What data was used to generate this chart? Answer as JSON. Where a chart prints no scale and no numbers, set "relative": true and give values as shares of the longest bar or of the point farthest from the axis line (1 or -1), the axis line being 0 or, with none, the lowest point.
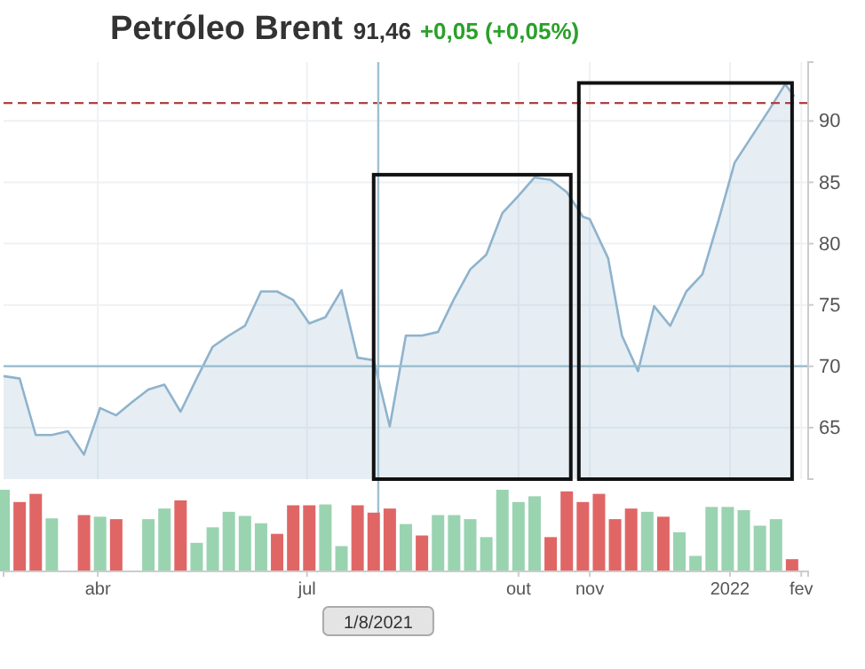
{
  "chart_data": [
    {
      "type": "area",
      "title": "Petróleo Brent",
      "subtitle": "91,46",
      "annotations": [
        "+0,05 (+0,05%)"
      ],
      "x": [
        "2021-02-19",
        "2021-02-26",
        "2021-03-05",
        "2021-03-12",
        "2021-03-19",
        "2021-03-26",
        "2021-04-02",
        "2021-04-09",
        "2021-04-16",
        "2021-04-23",
        "2021-04-30",
        "2021-05-07",
        "2021-05-14",
        "2021-05-21",
        "2021-05-28",
        "2021-06-04",
        "2021-06-11",
        "2021-06-18",
        "2021-06-25",
        "2021-07-02",
        "2021-07-09",
        "2021-07-16",
        "2021-07-23",
        "2021-07-30",
        "2021-08-06",
        "2021-08-13",
        "2021-08-20",
        "2021-08-27",
        "2021-09-03",
        "2021-09-10",
        "2021-09-17",
        "2021-09-24",
        "2021-10-01",
        "2021-10-08",
        "2021-10-15",
        "2021-10-22",
        "2021-10-29",
        "2021-11-01",
        "2021-11-09",
        "2021-11-15",
        "2021-11-22",
        "2021-11-29",
        "2021-12-06",
        "2021-12-13",
        "2021-12-20",
        "2021-12-27",
        "2022-01-03",
        "2022-01-18",
        "2022-01-25",
        "2022-01-29"
      ],
      "series": [
        {
          "color": "#8fb3cc",
          "values": [
            69.2,
            69.0,
            64.4,
            64.4,
            64.7,
            62.8,
            66.6,
            66.0,
            67.1,
            68.1,
            68.5,
            66.3,
            69.0,
            71.6,
            72.5,
            73.3,
            76.1,
            76.1,
            75.4,
            73.5,
            74.0,
            76.2,
            70.7,
            70.5,
            65.1,
            72.5,
            72.5,
            72.8,
            75.5,
            77.9,
            79.1,
            82.5,
            83.9,
            85.4,
            85.2,
            84.2,
            82.2,
            82.0,
            78.8,
            72.5,
            69.6,
            74.9,
            73.3,
            76.1,
            77.5,
            81.9,
            86.6,
            90.9,
            93.0,
            92.0
          ]
        }
      ],
      "xlim": [
        "2021-02-19",
        "2022-02-04"
      ],
      "xticks": [
        {
          "value": "2021-04-01",
          "label": null
        },
        {
          "value": "2021-07-01",
          "label": null
        },
        {
          "value": "2021-10-01",
          "label": null
        },
        {
          "value": "2021-11-01",
          "label": null
        },
        {
          "value": "2022-01-01",
          "label": null
        },
        {
          "value": "2022-02-01",
          "label": null
        }
      ],
      "ylim": [
        60.8,
        94.8
      ],
      "yticks": [
        65,
        70,
        75,
        80,
        85,
        90
      ],
      "grid": true,
      "tick_labels": "y",
      "ref_lines": [
        {
          "axis": "y",
          "value": 91.46,
          "color": "#b04040",
          "line_style": "dashed"
        },
        {
          "axis": "y",
          "value": 70,
          "color": "#9fbfd0"
        },
        {
          "axis": "x",
          "value": "2021-08-01",
          "label": "1/8/2021",
          "color": "#9fbfd0"
        }
      ]
    },
    {
      "type": "bar",
      "relative": true,
      "tick_labels": "x",
      "x": [
        "2021-02-19",
        "2021-02-26",
        "2021-03-05",
        "2021-03-12",
        "2021-03-19",
        "2021-03-26",
        "2021-04-02",
        "2021-04-09",
        "2021-04-16",
        "2021-04-23",
        "2021-04-30",
        "2021-05-07",
        "2021-05-14",
        "2021-05-21",
        "2021-05-28",
        "2021-06-04",
        "2021-06-11",
        "2021-06-18",
        "2021-06-25",
        "2021-07-02",
        "2021-07-09",
        "2021-07-16",
        "2021-07-23",
        "2021-07-30",
        "2021-08-06",
        "2021-08-13",
        "2021-08-20",
        "2021-08-27",
        "2021-09-03",
        "2021-09-10",
        "2021-09-17",
        "2021-09-24",
        "2021-10-01",
        "2021-10-08",
        "2021-10-15",
        "2021-10-22",
        "2021-10-29",
        "2021-11-05",
        "2021-11-12",
        "2021-11-19",
        "2021-11-26",
        "2021-12-03",
        "2021-12-10",
        "2021-12-17",
        "2021-12-24",
        "2021-12-31",
        "2022-01-07",
        "2022-01-14",
        "2022-01-21",
        "2022-01-28"
      ],
      "values": [
        1.0,
        0.85,
        0.95,
        0.65,
        null,
        0.69,
        0.67,
        0.64,
        null,
        0.64,
        0.77,
        0.87,
        0.35,
        0.54,
        0.73,
        0.68,
        0.59,
        0.46,
        0.81,
        0.81,
        0.82,
        0.31,
        0.81,
        0.72,
        0.77,
        0.58,
        0.44,
        0.69,
        0.69,
        0.64,
        0.42,
        1.0,
        0.85,
        0.92,
        0.42,
        0.98,
        0.85,
        0.95,
        0.64,
        0.77,
        0.73,
        0.67,
        0.48,
        0.19,
        0.79,
        0.79,
        0.75,
        0.56,
        0.64,
        0.15
      ],
      "colors": [
        "#9ad3b0",
        "#e06666",
        "#e06666",
        "#9ad3b0",
        null,
        "#e06666",
        "#9ad3b0",
        "#e06666",
        null,
        "#9ad3b0",
        "#9ad3b0",
        "#e06666",
        "#9ad3b0",
        "#9ad3b0",
        "#9ad3b0",
        "#9ad3b0",
        "#9ad3b0",
        "#e06666",
        "#e06666",
        "#e06666",
        "#9ad3b0",
        "#9ad3b0",
        "#e06666",
        "#e06666",
        "#e06666",
        "#9ad3b0",
        "#e06666",
        "#9ad3b0",
        "#9ad3b0",
        "#9ad3b0",
        "#9ad3b0",
        "#9ad3b0",
        "#9ad3b0",
        "#9ad3b0",
        "#e06666",
        "#e06666",
        "#e06666",
        "#e06666",
        "#e06666",
        "#e06666",
        "#9ad3b0",
        "#e06666",
        "#9ad3b0",
        "#9ad3b0",
        "#9ad3b0",
        "#9ad3b0",
        "#9ad3b0",
        "#9ad3b0",
        "#9ad3b0",
        "#e06666"
      ],
      "xlim": [
        "2021-02-19",
        "2022-02-04"
      ],
      "xticks": [
        {
          "value": "2021-04-01",
          "label": "abr"
        },
        {
          "value": "2021-07-01",
          "label": "jul"
        },
        {
          "value": "2021-10-01",
          "label": "out"
        },
        {
          "value": "2021-11-01",
          "label": "nov"
        },
        {
          "value": "2022-01-01",
          "label": "2022"
        },
        {
          "value": "2022-02-01",
          "label": "fev"
        }
      ]
    }
  ]
}
